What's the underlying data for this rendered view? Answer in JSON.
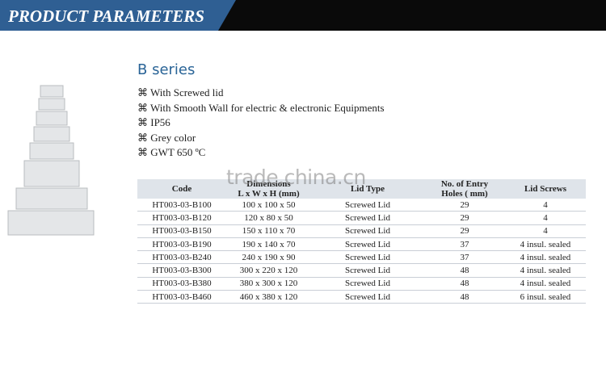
{
  "header": {
    "title": "PRODUCT PARAMETERS"
  },
  "product": {
    "series": "B series",
    "features": [
      "With Screwed lid",
      "With Smooth Wall for electric & electronic Equipments",
      "IP56",
      "Grey color",
      "GWT   650 ºC"
    ]
  },
  "watermark": "trade.china.cn",
  "table": {
    "columns": [
      [
        "Code"
      ],
      [
        "Dimensions",
        "L x W x H (mm)"
      ],
      [
        "Lid Type"
      ],
      [
        "No. of Entry",
        "Holes ( mm)"
      ],
      [
        "Lid Screws"
      ]
    ],
    "rows": [
      [
        "HT003-03-B100",
        "100 x 100 x 50",
        "Screwed Lid",
        "29",
        "4"
      ],
      [
        "HT003-03-B120",
        "120 x 80 x 50",
        "Screwed Lid",
        "29",
        "4"
      ],
      [
        "HT003-03-B150",
        "150 x 110 x 70",
        "Screwed Lid",
        "29",
        "4"
      ],
      [
        "HT003-03-B190",
        "190 x 140 x 70",
        "Screwed Lid",
        "37",
        "4 insul. sealed"
      ],
      [
        "HT003-03-B240",
        "240 x 190 x 90",
        "Screwed Lid",
        "37",
        "4 insul. sealed"
      ],
      [
        "HT003-03-B300",
        "300 x 220 x 120",
        "Screwed Lid",
        "48",
        "4 insul. sealed"
      ],
      [
        "HT003-03-B380",
        "380 x 300 x 120",
        "Screwed Lid",
        "48",
        "4 insul. sealed"
      ],
      [
        "HT003-03-B460",
        "460 x 380 x 120",
        "Screwed Lid",
        "48",
        "6 insul. sealed"
      ]
    ]
  }
}
